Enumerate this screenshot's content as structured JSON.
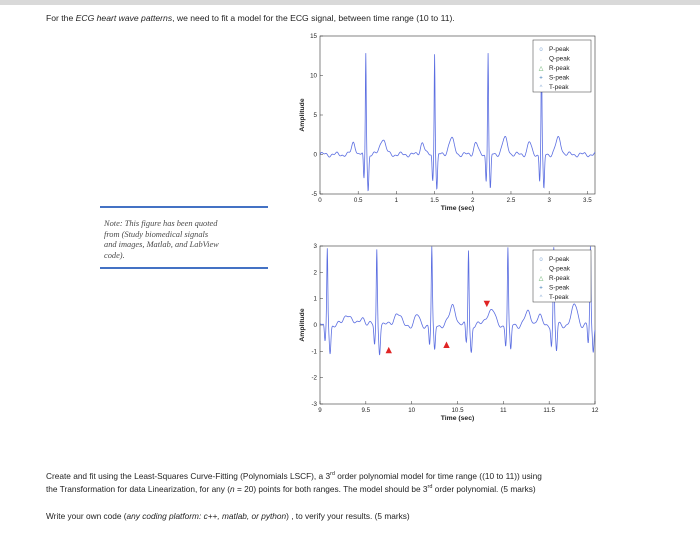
{
  "intro": {
    "pre": "For the ",
    "italic": "ECG heart wave patterns",
    "post": ", we need to fit a model for the ECG signal, between time range (10 to 11)."
  },
  "note": {
    "lines": [
      "Note: This figure has been quoted",
      "from (Study biomedical signals",
      "and images, Matlab, and LabView",
      "code)."
    ]
  },
  "legend_labels": [
    "P-peak",
    "Q-peak",
    "R-peak",
    "S-peak",
    "T-peak"
  ],
  "chart_data": [
    {
      "type": "line",
      "xlabel": "Time (sec)",
      "ylabel": "Amplitude",
      "xlim": [
        0,
        3.6
      ],
      "ylim": [
        -5,
        15
      ],
      "x_ticks": [
        "0",
        "0.5",
        "1",
        "1.5",
        "2",
        "2.5",
        "3",
        "3.5"
      ],
      "x_tick_values": [
        0,
        0.5,
        1,
        1.5,
        2,
        2.5,
        3,
        3.5
      ],
      "y_ticks": [
        "-5",
        "0",
        "5",
        "10",
        "15"
      ],
      "y_tick_values": [
        -5,
        0,
        5,
        10,
        15
      ],
      "series_color": "#5b6ee1",
      "beats": [
        0.6,
        1.5,
        2.2,
        2.9
      ],
      "legend": [
        "P-peak",
        "Q-peak",
        "R-peak",
        "S-peak",
        "T-peak"
      ],
      "legend_position": "top-right"
    },
    {
      "type": "line",
      "xlabel": "Time (sec)",
      "ylabel": "Amplitude",
      "xlim": [
        9,
        12
      ],
      "ylim": [
        -3,
        3
      ],
      "x_ticks": [
        "9",
        "9.5",
        "10",
        "10.5",
        "11",
        "11.5",
        "12"
      ],
      "x_tick_values": [
        9,
        9.5,
        10,
        10.5,
        11,
        11.5,
        12
      ],
      "y_ticks": [
        "-3",
        "-2",
        "-1",
        "0",
        "1",
        "2",
        "3"
      ],
      "y_tick_values": [
        -3,
        -2,
        -1,
        0,
        1,
        2,
        3
      ],
      "series_color": "#5b6ee1",
      "marker_color": "#e02424",
      "beats": [
        9.08,
        9.62,
        10.22,
        10.62,
        11.05,
        11.55,
        11.95
      ],
      "markers": [
        {
          "x": 9.75,
          "y": -0.95,
          "shape": "up"
        },
        {
          "x": 10.38,
          "y": -0.75,
          "shape": "up"
        },
        {
          "x": 10.82,
          "y": 0.8,
          "shape": "down"
        }
      ],
      "legend": [
        "P-peak",
        "Q-peak",
        "R-peak",
        "S-peak",
        "T-peak"
      ],
      "legend_position": "top-right"
    }
  ],
  "task": {
    "line1_pre": "Create and fit using the Least-Squares Curve-Fitting (Polynomials LSCF), a 3",
    "line1_sup": "rd",
    "line1_post": " order polynomial model for time range ((10 to 11))  using",
    "line2_pre": "the Transformation for data Linearization, for any (",
    "line2_n": "n",
    "line2_mid": " = 20) points for both ranges.  The model should be 3",
    "line2_sup": "rd",
    "line2_post": " order polynomial.  (5 marks)",
    "line3_pre": "Write your own code (",
    "line3_italic": "any coding platform: c++, matlab, or python",
    "line3_post": ") , to verify your results.  (5 marks)"
  }
}
